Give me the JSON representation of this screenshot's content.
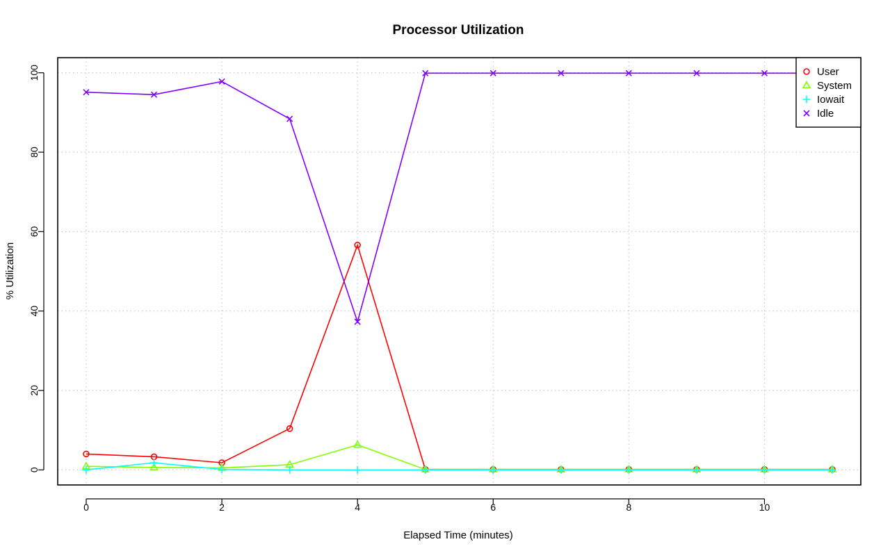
{
  "chart_data": {
    "type": "line",
    "title": "Processor Utilization",
    "xlabel": "Elapsed Time (minutes)",
    "ylabel": "% Utilization",
    "x": [
      0,
      1,
      2,
      3,
      4,
      5,
      6,
      7,
      8,
      9,
      10,
      11
    ],
    "xlim": [
      -0.42,
      11.42
    ],
    "ylim": [
      -3.8,
      103.8
    ],
    "xticks": [
      0,
      2,
      4,
      6,
      8,
      10
    ],
    "yticks": [
      0,
      20,
      40,
      60,
      80,
      100
    ],
    "grid": true,
    "legend_position": "top-right",
    "series": [
      {
        "name": "User",
        "color": "#ff0000",
        "marker": "circle",
        "values": [
          4.0,
          3.3,
          1.8,
          10.4,
          56.6,
          0.1,
          0.1,
          0.1,
          0.1,
          0.1,
          0.1,
          0.1
        ]
      },
      {
        "name": "System",
        "color": "#80ff00",
        "marker": "triangle",
        "values": [
          0.9,
          0.6,
          0.5,
          1.3,
          6.3,
          0.1,
          0.1,
          0.1,
          0.1,
          0.1,
          0.1,
          0.1
        ]
      },
      {
        "name": "Iowait",
        "color": "#00ffff",
        "marker": "plus",
        "values": [
          0.0,
          1.8,
          0.1,
          0.0,
          0.0,
          0.0,
          0.0,
          0.0,
          0.0,
          0.0,
          0.0,
          0.0
        ]
      },
      {
        "name": "Idle",
        "color": "#8000ff",
        "marker": "cross",
        "values": [
          95.1,
          94.5,
          97.8,
          88.4,
          37.3,
          99.9,
          99.9,
          99.9,
          99.9,
          99.9,
          99.9,
          99.9
        ]
      }
    ]
  }
}
